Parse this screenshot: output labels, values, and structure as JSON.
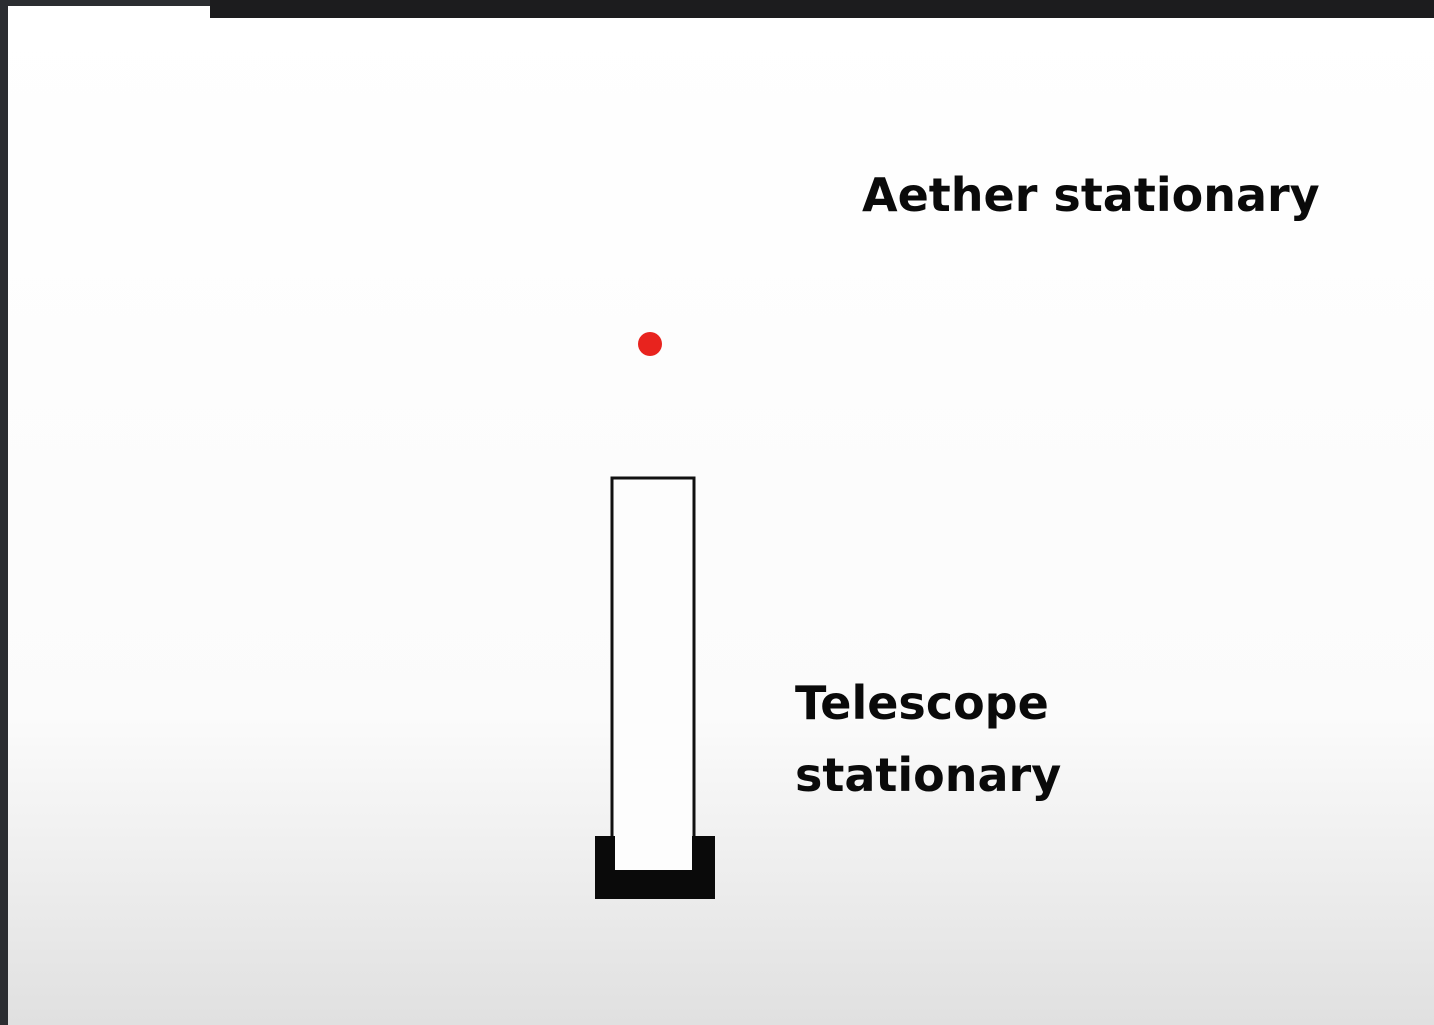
{
  "labels": {
    "aether": "Aether stationary",
    "telescope_line1": "Telescope",
    "telescope_line2": "stationary"
  }
}
